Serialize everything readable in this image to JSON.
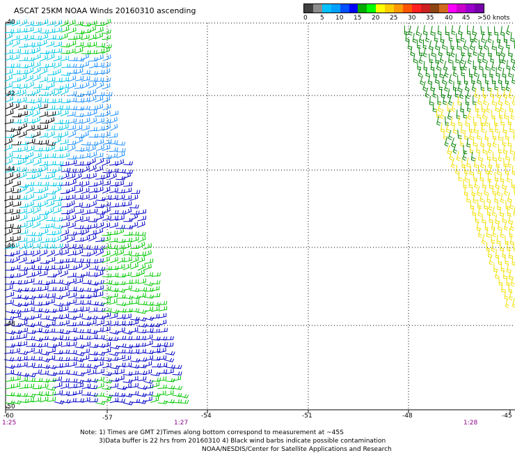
{
  "title": "ASCAT 25KM NOAA Winds 20160310 ascending",
  "scale": {
    "colors": [
      "#404040",
      "#8c8c8c",
      "#00c0ff",
      "#00a0ff",
      "#0050ff",
      "#0000ff",
      "#00aa00",
      "#00ff00",
      "#ffff00",
      "#ffcc00",
      "#ff9900",
      "#ff5500",
      "#ff2020",
      "#cc2020",
      "#8b4513",
      "#d2691e",
      "#ff00ff",
      "#cc00cc",
      "#9900cc",
      "#7700aa"
    ],
    "ticks": [
      "0",
      "5",
      "10",
      "15",
      "20",
      "25",
      "30",
      "35",
      "40",
      "45",
      ">50 knots"
    ]
  },
  "lat_labels": [
    "-40",
    "-42",
    "-44",
    "-46",
    "-48",
    "-50"
  ],
  "lon_labels": [
    "-60",
    "-57",
    "-54",
    "-51",
    "-48",
    "-45"
  ],
  "times": {
    "left": "1:25",
    "middle": "1:27",
    "right": "1:28"
  },
  "notes": [
    "Note: 1) Times are GMT 2)Times along bottom correspond to measurement at ~45S",
    "3)Data buffer is 22 hrs from 20160310 4) Black wind barbs indicate possible contamination",
    "NOAA/NESDIS/Center for Satellite Applications and Research"
  ],
  "wind_colors": {
    "black": "#000000",
    "cyan": "#00c8e6",
    "lightblue": "#1e90ff",
    "blue": "#0000c8",
    "green": "#00c800",
    "darkgreen": "#008000",
    "yellow": "#f0e000"
  }
}
